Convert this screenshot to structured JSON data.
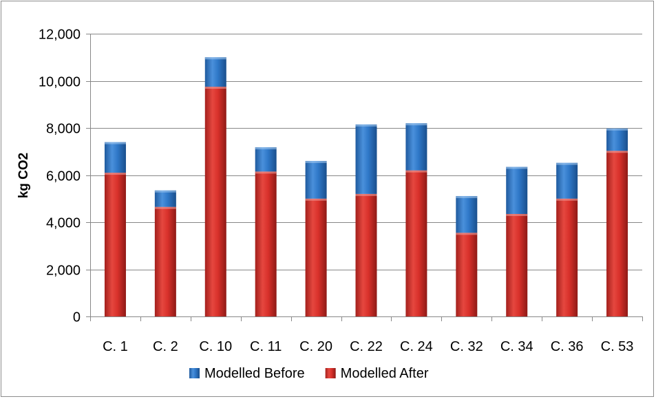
{
  "chart_data": {
    "type": "bar",
    "stacked": true,
    "categories": [
      "C. 1",
      "C. 2",
      "C. 10",
      "C. 11",
      "C. 20",
      "C. 22",
      "C. 24",
      "C. 32",
      "C. 34",
      "C. 36",
      "C. 53"
    ],
    "series": [
      {
        "name": "Modelled After",
        "color": "#d9312b",
        "values": [
          6100,
          4650,
          9750,
          6150,
          5000,
          5200,
          6200,
          3550,
          4350,
          5000,
          7030
        ]
      },
      {
        "name": "Modelled Before",
        "color": "#2f78c8",
        "values": [
          1300,
          700,
          1250,
          1030,
          1600,
          2950,
          2000,
          1560,
          2000,
          1520,
          950
        ]
      }
    ],
    "legend_order": [
      "Modelled Before",
      "Modelled After"
    ],
    "ylabel": "kg CO2",
    "xlabel": "",
    "title": "",
    "ylim": [
      0,
      12000
    ],
    "yticks": [
      0,
      2000,
      4000,
      6000,
      8000,
      10000,
      12000
    ],
    "ytick_labels": [
      "0",
      "2,000",
      "4,000",
      "6,000",
      "8,000",
      "10,000",
      "12,000"
    ],
    "grid": true,
    "legend_position": "bottom"
  }
}
